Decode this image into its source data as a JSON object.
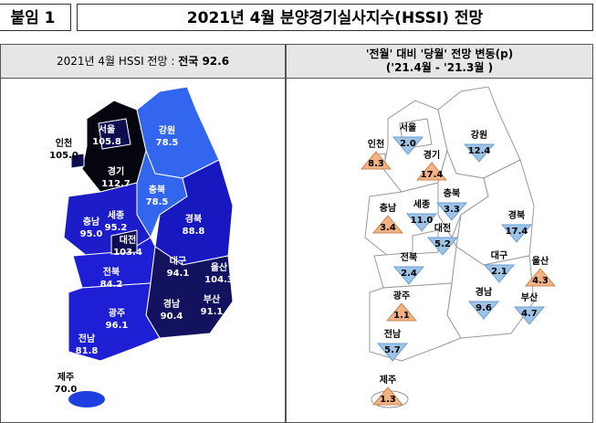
{
  "header": {
    "tag": "붙임 1",
    "title": "2021년 4월 분양경기실사지수(HSSI) 전망"
  },
  "left_panel": {
    "title": "2021년 4월 HSSI 전망 : ",
    "national": "전국 92.6",
    "regions": [
      {
        "name": "서울",
        "value": "105.8",
        "color": "#0d0d52"
      },
      {
        "name": "인천",
        "value": "105.0",
        "color": "#0d0d52"
      },
      {
        "name": "경기",
        "value": "112.7",
        "color": "#050510"
      },
      {
        "name": "강원",
        "value": "78.5",
        "color": "#3366ee"
      },
      {
        "name": "충북",
        "value": "78.5",
        "color": "#3366ee"
      },
      {
        "name": "세종",
        "value": "95.2",
        "color": "#1c1cc8"
      },
      {
        "name": "충남",
        "value": "95.0",
        "color": "#1c1cc8"
      },
      {
        "name": "대전",
        "value": "103.4",
        "color": "#0d0d52"
      },
      {
        "name": "경북",
        "value": "88.8",
        "color": "#1818c0"
      },
      {
        "name": "대구",
        "value": "94.1",
        "color": "#12125e"
      },
      {
        "name": "울산",
        "value": "104.3",
        "color": "#0d0d52"
      },
      {
        "name": "전북",
        "value": "84.2",
        "color": "#1e1ed4"
      },
      {
        "name": "경남",
        "value": "90.4",
        "color": "#12125e"
      },
      {
        "name": "부산",
        "value": "91.1",
        "color": "#12125e"
      },
      {
        "name": "광주",
        "value": "96.1",
        "color": "#1c1cc8"
      },
      {
        "name": "전남",
        "value": "81.8",
        "color": "#1e1ed4"
      },
      {
        "name": "제주",
        "value": "70.0",
        "color": "#1e3ee0"
      }
    ]
  },
  "right_panel": {
    "title": "'전월' 대비 '당월' 전망 변동(p)",
    "subtitle": "('21.4월 - '21.3월 )",
    "up_color": "#f4b183",
    "down_color": "#9dc3e6",
    "regions": [
      {
        "name": "서울",
        "value": "2.0",
        "direction": "down"
      },
      {
        "name": "인천",
        "value": "8.3",
        "direction": "up"
      },
      {
        "name": "경기",
        "value": "17.4",
        "direction": "up"
      },
      {
        "name": "강원",
        "value": "12.4",
        "direction": "down"
      },
      {
        "name": "충북",
        "value": "3.3",
        "direction": "down"
      },
      {
        "name": "세종",
        "value": "11.0",
        "direction": "down"
      },
      {
        "name": "충남",
        "value": "3.4",
        "direction": "up"
      },
      {
        "name": "대전",
        "value": "5.2",
        "direction": "down"
      },
      {
        "name": "경북",
        "value": "17.4",
        "direction": "down"
      },
      {
        "name": "대구",
        "value": "2.1",
        "direction": "down"
      },
      {
        "name": "울산",
        "value": "4.3",
        "direction": "up"
      },
      {
        "name": "전북",
        "value": "2.4",
        "direction": "down"
      },
      {
        "name": "경남",
        "value": "9.6",
        "direction": "down"
      },
      {
        "name": "부산",
        "value": "4.7",
        "direction": "down"
      },
      {
        "name": "광주",
        "value": "1.1",
        "direction": "up"
      },
      {
        "name": "전남",
        "value": "5.7",
        "direction": "down"
      },
      {
        "name": "제주",
        "value": "1.3",
        "direction": "up"
      }
    ]
  }
}
